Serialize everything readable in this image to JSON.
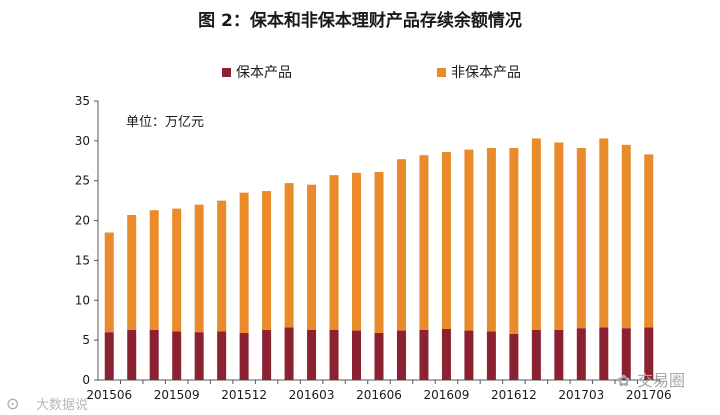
{
  "chart_data": {
    "type": "bar",
    "stacked": true,
    "title": "图 2：保本和非保本理财产品存续余额情况",
    "unit_note": "单位：万亿元",
    "categories": [
      "201506",
      "201507",
      "201508",
      "201509",
      "201510",
      "201511",
      "201512",
      "201601",
      "201602",
      "201603",
      "201604",
      "201605",
      "201606",
      "201607",
      "201608",
      "201609",
      "201610",
      "201611",
      "201612",
      "201701",
      "201702",
      "201703",
      "201704",
      "201705",
      "201706"
    ],
    "x_tick_labels": [
      "201506",
      "201509",
      "201512",
      "201603",
      "201606",
      "201609",
      "201612",
      "201703",
      "201706"
    ],
    "series": [
      {
        "name": "保本产品",
        "color": "#8b2232",
        "values": [
          6.0,
          6.3,
          6.3,
          6.1,
          6.0,
          6.1,
          5.9,
          6.3,
          6.6,
          6.3,
          6.3,
          6.2,
          5.9,
          6.2,
          6.3,
          6.4,
          6.2,
          6.1,
          5.8,
          6.3,
          6.3,
          6.5,
          6.6,
          6.5,
          6.6
        ]
      },
      {
        "name": "非保本产品",
        "color": "#e98b2a",
        "values": [
          12.5,
          14.4,
          15.0,
          15.4,
          16.0,
          16.4,
          17.6,
          17.4,
          18.1,
          18.2,
          19.4,
          19.8,
          20.2,
          21.5,
          21.9,
          22.2,
          22.7,
          23.0,
          23.3,
          24.0,
          23.5,
          22.6,
          23.7,
          23.0,
          21.7
        ]
      }
    ],
    "y_axis": {
      "min": 0,
      "max": 35,
      "ticks": [
        0,
        5,
        10,
        15,
        20,
        25,
        30,
        35
      ]
    },
    "legend_position": "top",
    "grid": false
  },
  "watermark": {
    "left": "大数据说",
    "right": "交易圈"
  }
}
